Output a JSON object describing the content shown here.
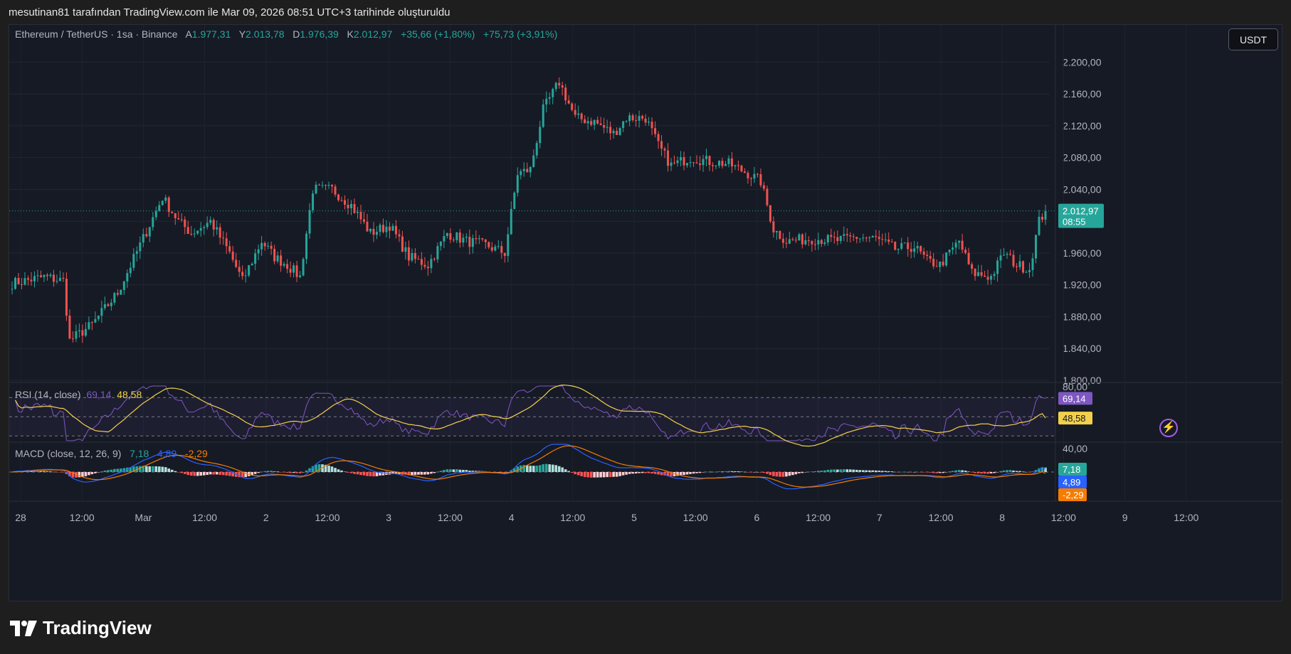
{
  "caption": "mesutinan81 tarafından TradingView.com ile Mar 09, 2026 08:51 UTC+3 tarihinde oluşturuldu",
  "currency_button": "USDT",
  "legend": {
    "symbol": "Ethereum / TetherUS · 1sa · Binance",
    "open_label": "A",
    "open": "1.977,31",
    "high_label": "Y",
    "high": "2.013,78",
    "low_label": "D",
    "low": "1.976,39",
    "close_label": "K",
    "close": "2.012,97",
    "change": "+35,66 (+1,80%)",
    "change2": "+75,73 (+3,91%)"
  },
  "rsi_legend": {
    "name": "RSI (14, close)",
    "rsi": "69,14",
    "ma": "48,58"
  },
  "macd_legend": {
    "name": "MACD (close, 12, 26, 9)",
    "hist": "7,18",
    "macd": "4,89",
    "signal": "-2,29"
  },
  "logo_text": "TradingView",
  "colors": {
    "up": "#26a69a",
    "down": "#ef5350",
    "rsi": "#7e57c2",
    "rsi_ma": "#f2d04b",
    "macd": "#2962ff",
    "signal": "#f57c00",
    "bg": "#161a25"
  },
  "chart_data": [
    {
      "type": "candlestick",
      "title": "Ethereum / TetherUS · 1sa · Binance",
      "ylim": [
        1800,
        2220
      ],
      "y_ticks": [
        "2.200,00",
        "2.160,00",
        "2.120,00",
        "2.080,00",
        "2.040,00",
        "2.000,00",
        "1.960,00",
        "1.920,00",
        "1.880,00",
        "1.840,00",
        "1.800,00"
      ],
      "y_tick_values": [
        2200,
        2160,
        2120,
        2080,
        2040,
        2000,
        1960,
        1920,
        1880,
        1840,
        1800
      ],
      "x_ticks": [
        "28",
        "12:00",
        "Mar",
        "12:00",
        "2",
        "12:00",
        "3",
        "12:00",
        "4",
        "12:00",
        "5",
        "12:00",
        "6",
        "12:00",
        "7",
        "12:00",
        "8",
        "12:00",
        "9",
        "12:00"
      ],
      "last_price": {
        "value": 2012.97,
        "label": "2.012,97",
        "countdown": "08:55"
      },
      "waypoints": [
        [
          0,
          1922
        ],
        [
          10,
          1930
        ],
        [
          16,
          1925
        ],
        [
          18,
          1850
        ],
        [
          25,
          1870
        ],
        [
          33,
          1910
        ],
        [
          40,
          1970
        ],
        [
          47,
          2030
        ],
        [
          52,
          2000
        ],
        [
          56,
          1985
        ],
        [
          62,
          2000
        ],
        [
          68,
          1960
        ],
        [
          72,
          1925
        ],
        [
          78,
          1975
        ],
        [
          82,
          1955
        ],
        [
          86,
          1945
        ],
        [
          90,
          1930
        ],
        [
          94,
          2040
        ],
        [
          100,
          2040
        ],
        [
          106,
          2020
        ],
        [
          112,
          1985
        ],
        [
          118,
          1995
        ],
        [
          124,
          1955
        ],
        [
          130,
          1945
        ],
        [
          136,
          1985
        ],
        [
          142,
          1975
        ],
        [
          148,
          1970
        ],
        [
          154,
          1960
        ],
        [
          158,
          2060
        ],
        [
          162,
          2065
        ],
        [
          166,
          2140
        ],
        [
          171,
          2175
        ],
        [
          176,
          2130
        ],
        [
          182,
          2125
        ],
        [
          188,
          2110
        ],
        [
          192,
          2130
        ],
        [
          198,
          2130
        ],
        [
          202,
          2095
        ],
        [
          206,
          2070
        ],
        [
          212,
          2080
        ],
        [
          218,
          2075
        ],
        [
          224,
          2072
        ],
        [
          230,
          2060
        ],
        [
          234,
          2050
        ],
        [
          238,
          1990
        ],
        [
          242,
          1975
        ],
        [
          250,
          1978
        ],
        [
          258,
          1976
        ],
        [
          264,
          1980
        ],
        [
          270,
          1978
        ],
        [
          276,
          1965
        ],
        [
          282,
          1968
        ],
        [
          286,
          1950
        ],
        [
          290,
          1945
        ],
        [
          296,
          1975
        ],
        [
          300,
          1935
        ],
        [
          306,
          1930
        ],
        [
          310,
          1960
        ],
        [
          314,
          1945
        ],
        [
          318,
          1940
        ],
        [
          321,
          2000
        ],
        [
          323,
          2013
        ]
      ],
      "range": {
        "high": 2200,
        "low": 1835
      }
    },
    {
      "type": "line",
      "title": "RSI (14, close)",
      "y_ticks": [
        "80,00"
      ],
      "levels": [
        70,
        50,
        30
      ],
      "ylim": [
        25,
        82
      ],
      "series": [
        {
          "name": "RSI",
          "last": 69.14,
          "label": "69,14",
          "color": "#7e57c2"
        },
        {
          "name": "MA",
          "last": 48.58,
          "label": "48,58",
          "color": "#f2d04b"
        }
      ]
    },
    {
      "type": "line",
      "title": "MACD (close, 12, 26, 9)",
      "y_ticks": [
        "40,00"
      ],
      "ylim": [
        -45,
        45
      ],
      "series": [
        {
          "name": "Histogram",
          "last": 7.18,
          "label": "7,18",
          "color": "#26a69a"
        },
        {
          "name": "MACD",
          "last": 4.89,
          "label": "4,89",
          "color": "#2962ff"
        },
        {
          "name": "Signal",
          "last": -2.29,
          "label": "-2,29",
          "color": "#f57c00"
        }
      ]
    }
  ]
}
